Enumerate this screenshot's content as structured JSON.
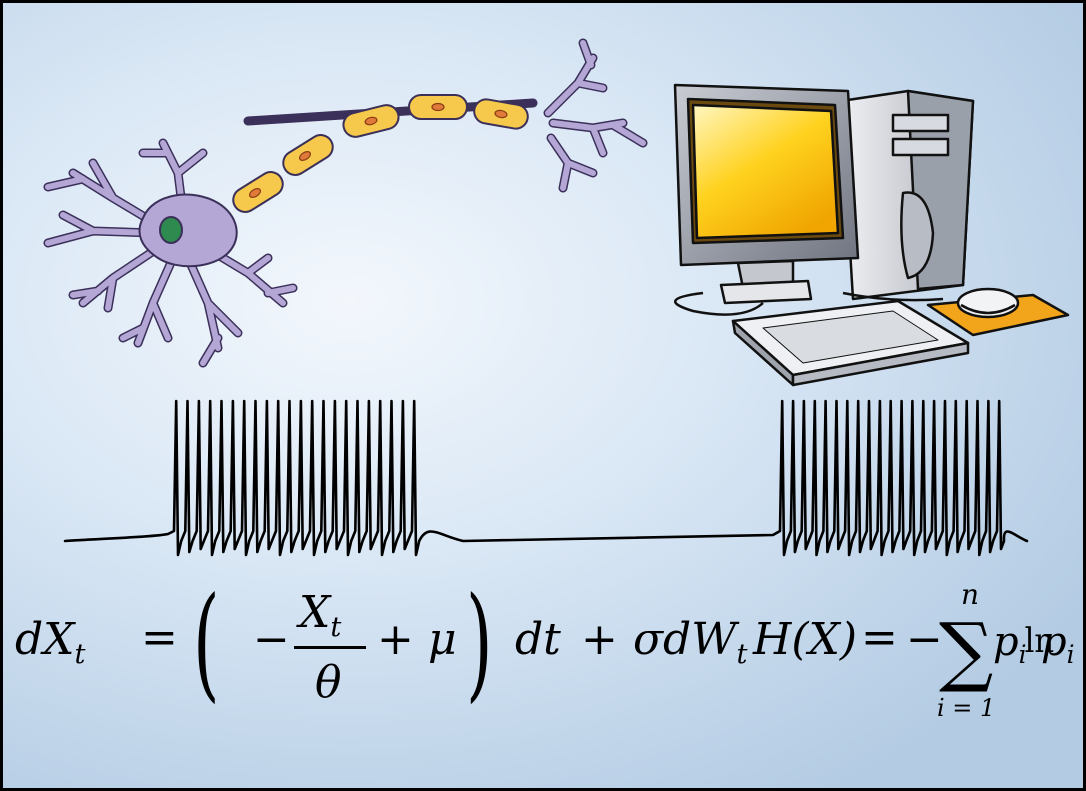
{
  "colors": {
    "frame": "#000000",
    "background_light": "#f3f7fc",
    "background_dark": "#b3cbe3",
    "neuron_body": "#b4a7d6",
    "neuron_nucleus": "#2f8a4f",
    "myelin": "#f6c84b",
    "node": "#e07a3a",
    "computer_grey": "#d6d8dd",
    "screen_yellow": "#ffd21f",
    "mousepad": "#f2a51a",
    "trace": "#000000"
  },
  "icons": {
    "neuron": "neuron-illustration",
    "computer": "desktop-computer-illustration",
    "spike_train": "membrane-potential-spike-train"
  },
  "spike_train": {
    "burst_1_spikes": 22,
    "burst_2_spikes": 21
  },
  "equations": {
    "ou": {
      "lhs_d": "d",
      "lhs_var": "X",
      "lhs_sub": "t",
      "equals": "=",
      "lparen": "(",
      "minus": "−",
      "frac_num": "X",
      "frac_num_sub": "t",
      "frac_den": "θ",
      "plus1": "+",
      "mu": "μ",
      "rparen": ")",
      "dt": "dt",
      "plus2": "+",
      "sigma": "σ",
      "dW": "dW",
      "dW_sub": "t"
    },
    "entropy": {
      "lhs": "H(X)",
      "equals": "=",
      "minus": "−",
      "sum": "∑",
      "upper": "n",
      "lower": "i = 1",
      "p1": "p",
      "p1_sub": "i",
      "ln": "ln",
      "p2": "p",
      "p2_sub": "i"
    }
  }
}
